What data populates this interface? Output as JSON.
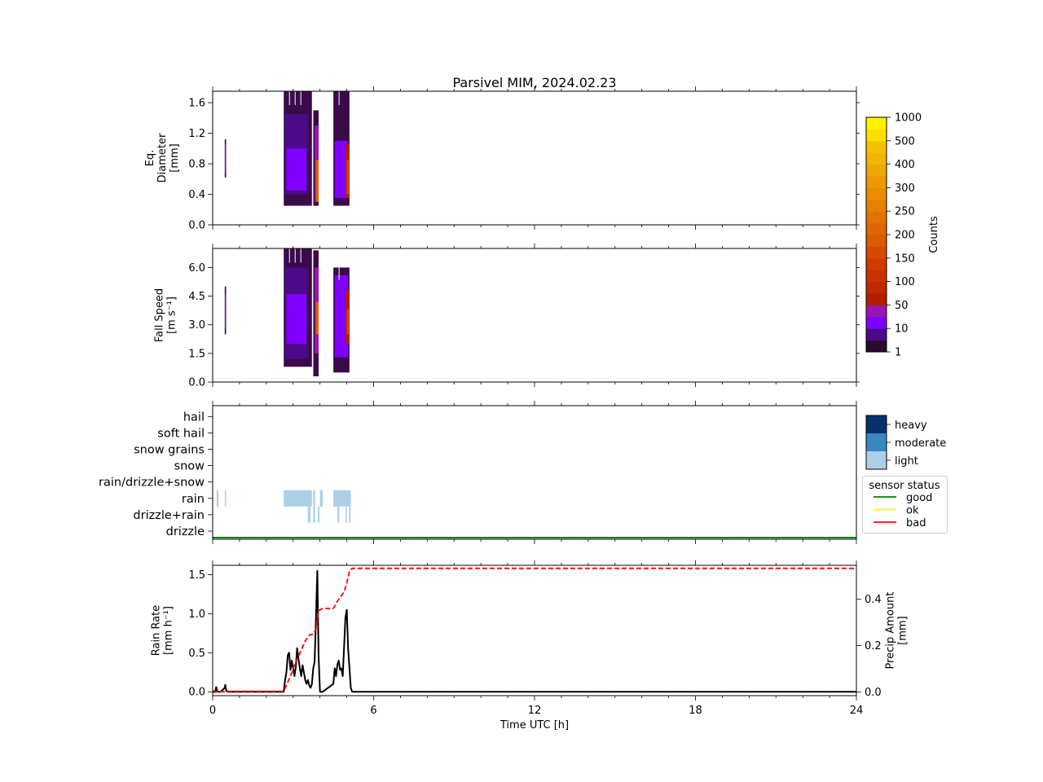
{
  "title": "Parsivel MIM, 2024.02.23",
  "xlabel": "Time UTC [h]",
  "x_ticks": [
    "0",
    "6",
    "12",
    "18",
    "24"
  ],
  "chart_data": [
    {
      "type": "heatmap",
      "name": "diameter-panel",
      "ylabel_lines": [
        "Eq.",
        "Diameter",
        "[mm]"
      ],
      "ylim": [
        0,
        1.75
      ],
      "xlim": [
        0,
        24
      ],
      "y_ticks": [
        0.0,
        0.4,
        0.8,
        1.2,
        1.6
      ],
      "y_tick_labels": [
        "0.0",
        "0.4",
        "0.8",
        "1.2",
        "1.6"
      ],
      "clusters": [
        {
          "x0": 0.45,
          "x1": 0.5,
          "y0": 0.62,
          "y1": 1.12,
          "level": "dark"
        },
        {
          "x0": 0.46,
          "x1": 0.49,
          "y0": 0.68,
          "y1": 1.05,
          "level": "10"
        },
        {
          "x0": 2.65,
          "x1": 3.7,
          "y0": 0.25,
          "y1": 1.75,
          "level": "1"
        },
        {
          "x0": 2.7,
          "x1": 3.55,
          "y0": 0.4,
          "y1": 1.45,
          "level": "5"
        },
        {
          "x0": 2.75,
          "x1": 3.5,
          "y0": 0.45,
          "y1": 1.0,
          "level": "10"
        },
        {
          "x0": 3.75,
          "x1": 3.95,
          "y0": 0.25,
          "y1": 1.5,
          "level": "1"
        },
        {
          "x0": 3.8,
          "x1": 3.95,
          "y0": 0.3,
          "y1": 1.3,
          "level": "20"
        },
        {
          "x0": 3.85,
          "x1": 3.95,
          "y0": 0.3,
          "y1": 0.85,
          "level": "200"
        },
        {
          "x0": 4.5,
          "x1": 5.1,
          "y0": 0.25,
          "y1": 1.75,
          "level": "1"
        },
        {
          "x0": 4.55,
          "x1": 5.05,
          "y0": 0.35,
          "y1": 1.1,
          "level": "10"
        },
        {
          "x0": 4.95,
          "x1": 5.1,
          "y0": 0.35,
          "y1": 1.05,
          "level": "40"
        },
        {
          "x0": 5.0,
          "x1": 5.08,
          "y0": 0.4,
          "y1": 0.85,
          "level": "100"
        }
      ]
    },
    {
      "type": "heatmap",
      "name": "fallspeed-panel",
      "ylabel_lines": [
        "Fall Speed",
        "[m s⁻¹]"
      ],
      "ylim": [
        0,
        7.0
      ],
      "xlim": [
        0,
        24
      ],
      "y_ticks": [
        0.0,
        1.5,
        3.0,
        4.5,
        6.0
      ],
      "y_tick_labels": [
        "0.0",
        "1.5",
        "3.0",
        "4.5",
        "6.0"
      ],
      "clusters": [
        {
          "x0": 0.45,
          "x1": 0.5,
          "y0": 2.5,
          "y1": 5.0,
          "level": "dark"
        },
        {
          "x0": 0.46,
          "x1": 0.49,
          "y0": 2.8,
          "y1": 4.6,
          "level": "10"
        },
        {
          "x0": 2.65,
          "x1": 3.7,
          "y0": 0.8,
          "y1": 7.0,
          "level": "1"
        },
        {
          "x0": 2.7,
          "x1": 3.55,
          "y0": 1.2,
          "y1": 6.0,
          "level": "5"
        },
        {
          "x0": 2.75,
          "x1": 3.5,
          "y0": 2.0,
          "y1": 4.6,
          "level": "10"
        },
        {
          "x0": 3.75,
          "x1": 3.95,
          "y0": 0.3,
          "y1": 6.9,
          "level": "1"
        },
        {
          "x0": 3.8,
          "x1": 3.95,
          "y0": 1.5,
          "y1": 6.0,
          "level": "20"
        },
        {
          "x0": 3.85,
          "x1": 3.95,
          "y0": 2.5,
          "y1": 4.2,
          "level": "200"
        },
        {
          "x0": 4.5,
          "x1": 5.1,
          "y0": 0.5,
          "y1": 6.0,
          "level": "1"
        },
        {
          "x0": 4.55,
          "x1": 5.05,
          "y0": 1.3,
          "y1": 5.6,
          "level": "10"
        },
        {
          "x0": 4.95,
          "x1": 5.1,
          "y0": 2.0,
          "y1": 4.8,
          "level": "40"
        },
        {
          "x0": 5.0,
          "x1": 5.08,
          "y0": 2.5,
          "y1": 3.8,
          "level": "100"
        }
      ]
    },
    {
      "type": "heatmap",
      "name": "precip-type-panel",
      "categories": [
        "drizzle",
        "drizzle+rain",
        "rain",
        "rain/drizzle+snow",
        "snow",
        "snow grains",
        "soft hail",
        "hail"
      ],
      "xlim": [
        0,
        24
      ],
      "segments": [
        {
          "category": "rain",
          "x0": 0.15,
          "x1": 0.22,
          "intensity": "light"
        },
        {
          "category": "rain",
          "x0": 0.45,
          "x1": 0.5,
          "intensity": "light"
        },
        {
          "category": "rain",
          "x0": 2.65,
          "x1": 3.7,
          "intensity": "light"
        },
        {
          "category": "rain",
          "x0": 3.75,
          "x1": 3.82,
          "intensity": "light"
        },
        {
          "category": "rain",
          "x0": 4.0,
          "x1": 4.1,
          "intensity": "light"
        },
        {
          "category": "rain",
          "x0": 4.5,
          "x1": 5.15,
          "intensity": "light"
        },
        {
          "category": "drizzle+rain",
          "x0": 3.55,
          "x1": 3.65,
          "intensity": "light"
        },
        {
          "category": "drizzle+rain",
          "x0": 3.75,
          "x1": 3.82,
          "intensity": "light"
        },
        {
          "category": "drizzle+rain",
          "x0": 3.92,
          "x1": 3.98,
          "intensity": "light"
        },
        {
          "category": "drizzle+rain",
          "x0": 4.65,
          "x1": 4.72,
          "intensity": "light"
        },
        {
          "category": "drizzle+rain",
          "x0": 4.95,
          "x1": 5.0,
          "intensity": "light"
        },
        {
          "category": "drizzle+rain",
          "x0": 5.08,
          "x1": 5.14,
          "intensity": "light"
        }
      ],
      "sensor_status": [
        {
          "x0": 0,
          "x1": 24,
          "status": "good"
        }
      ]
    },
    {
      "type": "line",
      "name": "rainrate-panel",
      "ylabel_lines": [
        "Rain Rate",
        "[mm h⁻¹]"
      ],
      "ylim": [
        -0.05,
        1.62
      ],
      "xlim": [
        0,
        24
      ],
      "y_ticks": [
        0.0,
        0.5,
        1.0,
        1.5
      ],
      "y_tick_labels": [
        "0.0",
        "0.5",
        "1.0",
        "1.5"
      ],
      "y2label_lines": [
        "Precip Amount",
        "[mm]"
      ],
      "y2lim": [
        -0.015,
        0.545
      ],
      "y2_ticks": [
        0.0,
        0.2,
        0.4
      ],
      "y2_tick_labels": [
        "0.0",
        "0.2",
        "0.4"
      ],
      "series": [
        {
          "name": "Rain Rate",
          "axis": "left",
          "color": "#000000",
          "style": "solid",
          "x": [
            0,
            0.1,
            0.13,
            0.17,
            0.2,
            0.3,
            0.45,
            0.47,
            0.5,
            0.55,
            2.65,
            2.7,
            2.75,
            2.8,
            2.85,
            2.9,
            2.95,
            3.0,
            3.05,
            3.1,
            3.15,
            3.2,
            3.25,
            3.3,
            3.35,
            3.4,
            3.45,
            3.5,
            3.55,
            3.6,
            3.65,
            3.7,
            3.75,
            3.8,
            3.85,
            3.9,
            3.95,
            4.0,
            4.05,
            4.1,
            4.5,
            4.55,
            4.6,
            4.65,
            4.7,
            4.75,
            4.8,
            4.85,
            4.9,
            4.95,
            5.0,
            5.05,
            5.1,
            5.15,
            5.2,
            24
          ],
          "y": [
            0,
            0.01,
            0.06,
            0.01,
            0,
            0,
            0.05,
            0.09,
            0.02,
            0,
            0,
            0.15,
            0.25,
            0.47,
            0.5,
            0.28,
            0.4,
            0.3,
            0.2,
            0.32,
            0.56,
            0.42,
            0.3,
            0.2,
            0.34,
            0.25,
            0.15,
            0.1,
            0.15,
            0.08,
            0.05,
            0.1,
            0.3,
            0.38,
            0.92,
            1.55,
            0.45,
            0,
            0,
            0,
            0.1,
            0.3,
            0.2,
            0.35,
            0.4,
            0.28,
            0.3,
            0.2,
            0.58,
            0.95,
            1.05,
            0.55,
            0.3,
            0.05,
            0,
            0
          ]
        },
        {
          "name": "Precip Amount",
          "axis": "right",
          "color": "#ff0000",
          "style": "dashed",
          "x": [
            0,
            0.1,
            0.15,
            0.5,
            0.55,
            2.65,
            2.75,
            2.9,
            3.1,
            3.3,
            3.45,
            3.6,
            3.75,
            3.85,
            3.95,
            4.1,
            4.5,
            4.7,
            4.9,
            5.0,
            5.1,
            5.2,
            24
          ],
          "y": [
            0,
            0,
            0.002,
            0.002,
            0.004,
            0.004,
            0.03,
            0.07,
            0.13,
            0.18,
            0.22,
            0.245,
            0.25,
            0.27,
            0.35,
            0.36,
            0.36,
            0.4,
            0.43,
            0.47,
            0.52,
            0.532,
            0.532
          ]
        }
      ]
    }
  ],
  "colorbar_counts": {
    "label": "Counts",
    "tick_labels": [
      "1",
      "10",
      "50",
      "100",
      "150",
      "200",
      "250",
      "300",
      "400",
      "500",
      "1000"
    ],
    "colors": [
      "#2a0a2e",
      "#4b0a8a",
      "#7f00ff",
      "#9b14b4",
      "#b41e00",
      "#c02800",
      "#c83200",
      "#d03c00",
      "#d64a00",
      "#dc5a00",
      "#e06600",
      "#e47200",
      "#e68000",
      "#e98c00",
      "#ec9a00",
      "#f0a800",
      "#f2b400",
      "#f6c000",
      "#fce000",
      "#fff200"
    ]
  },
  "colorbar_intensity": {
    "labels": [
      "heavy",
      "moderate",
      "light"
    ],
    "colors": [
      "#08306b",
      "#3787c0",
      "#abd0e6"
    ]
  },
  "sensor_legend": {
    "title": "sensor status",
    "items": [
      {
        "label": "good",
        "color": "#008000"
      },
      {
        "label": "ok",
        "color": "#ffff00"
      },
      {
        "label": "bad",
        "color": "#ff0000"
      }
    ]
  }
}
